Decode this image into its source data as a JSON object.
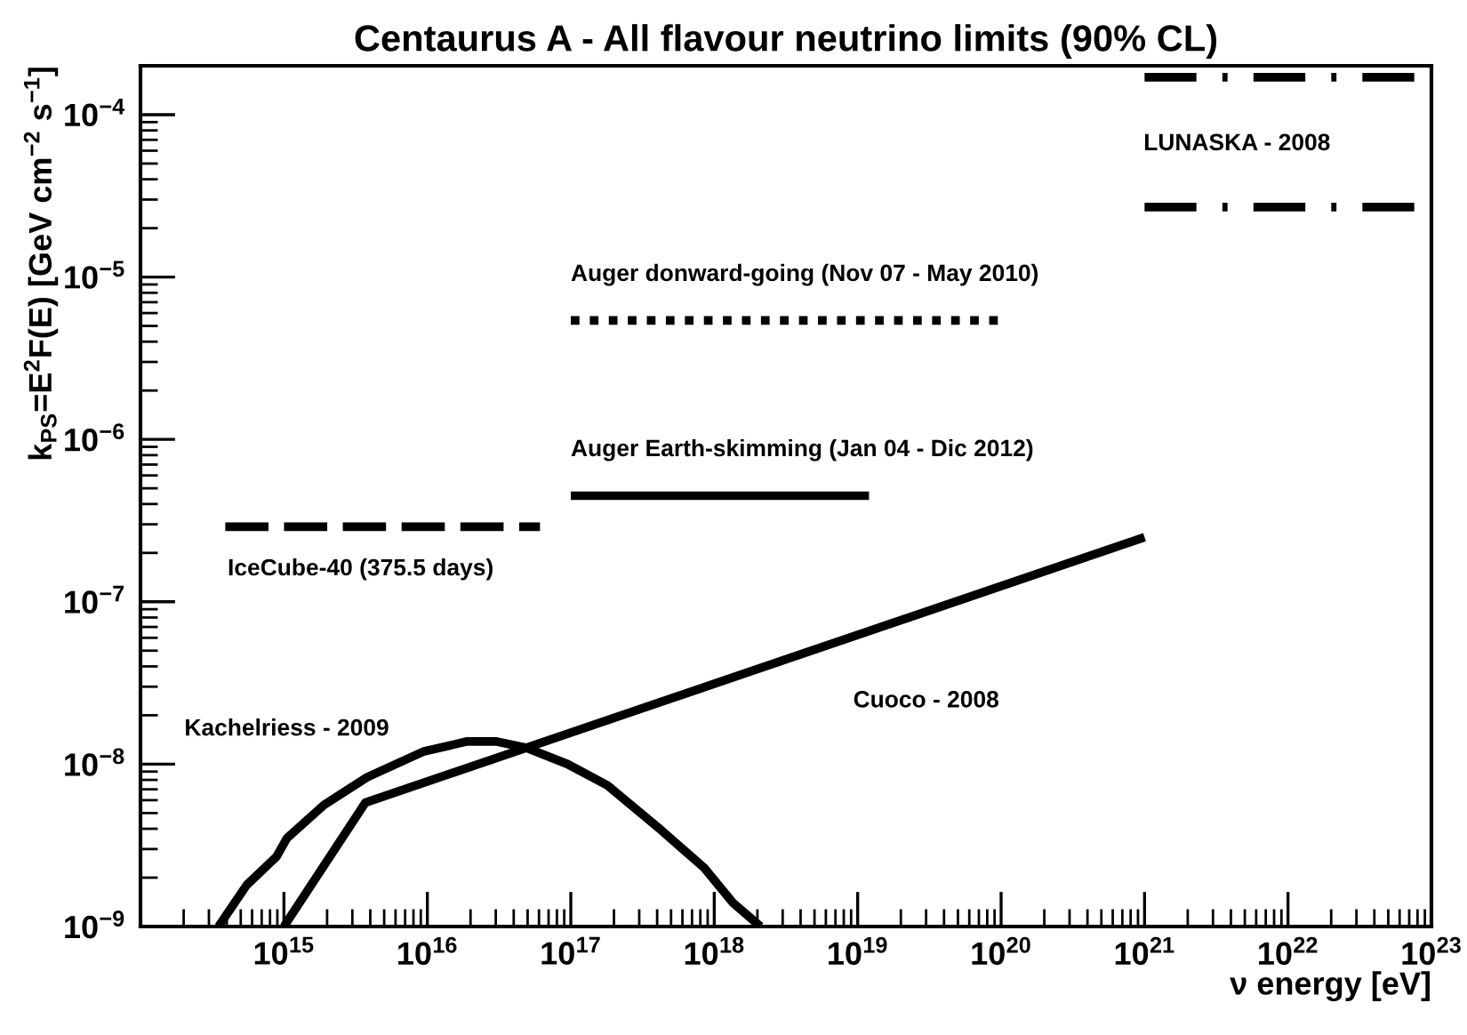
{
  "chart_data": {
    "type": "line",
    "title": "Centaurus A - All flavour neutrino limits (90% CL)",
    "xlabel": "ν energy [eV]",
    "ylabel": "k$_{PS}$=E$^{2}$F(E) [GeV cm$^{−2}$ s$^{−1}$]",
    "log": "xy",
    "grid": false,
    "legend": false,
    "xlim": [
      100000000000000.0,
      1e+23
    ],
    "ylim": [
      1e-09,
      0.0002
    ],
    "xticks": [
      {
        "value": 1000000000000000.0,
        "label": "10$^{15}$"
      },
      {
        "value": 1e+16,
        "label": "10$^{16}$"
      },
      {
        "value": 1e+17,
        "label": "10$^{17}$"
      },
      {
        "value": 1e+18,
        "label": "10$^{18}$"
      },
      {
        "value": 1e+19,
        "label": "10$^{19}$"
      },
      {
        "value": 1e+20,
        "label": "10$^{20}$"
      },
      {
        "value": 1e+21,
        "label": "10$^{21}$"
      },
      {
        "value": 1e+22,
        "label": "10$^{22}$"
      },
      {
        "value": 1e+23,
        "label": "10$^{23}$"
      }
    ],
    "yticks": [
      {
        "value": 1e-09,
        "label": "10$^{−9}$"
      },
      {
        "value": 1e-08,
        "label": "10$^{−8}$"
      },
      {
        "value": 1e-07,
        "label": "10$^{−7}$"
      },
      {
        "value": 1e-06,
        "label": "10$^{−6}$"
      },
      {
        "value": 1e-05,
        "label": "10$^{−5}$"
      },
      {
        "value": 0.0001,
        "label": "10$^{−4}$"
      }
    ],
    "annotations": [
      "IceCube-40 (375.5 days)",
      "LUNASKA - 2008",
      "Kachelriess - 2009"
    ],
    "series": [
      {
        "color": "#000000",
        "line_style": "dashed",
        "x": [
          390000000000000.0,
          6.1e+16
        ],
        "values": [
          2.9e-07,
          2.9e-07
        ]
      },
      {
        "name": "Auger donward-going (Nov 07 - May 2010)",
        "color": "#000000",
        "line_style": "dotted",
        "x": [
          1e+17,
          1e+20
        ],
        "values": [
          5.4e-06,
          5.4e-06
        ]
      },
      {
        "name": "Auger Earth-skimming (Jan 04 - Dic 2012)",
        "color": "#000000",
        "line_style": "solid",
        "x": [
          1e+17,
          1.2e+19
        ],
        "values": [
          4.5e-07,
          4.5e-07
        ]
      },
      {
        "color": "#000000",
        "line_style": "dashdot",
        "x": [
          1e+21,
          1e+23
        ],
        "values": [
          2.7e-05,
          2.7e-05
        ]
      },
      {
        "color": "#000000",
        "line_style": "dashdot",
        "x": [
          1e+21,
          1e+23
        ],
        "values": [
          0.00017,
          0.00017
        ]
      },
      {
        "name": "Cuoco - 2008",
        "color": "#000000",
        "line_style": "solid",
        "x": [
          1000000000000000.0,
          3700000000000000.0,
          1e+21
        ],
        "values": [
          1e-09,
          5.8e-09,
          2.5e-07
        ]
      },
      {
        "color": "#000000",
        "line_style": "solid",
        "x": [
          350000000000000.0,
          550000000000000.0,
          890000000000000.0,
          1050000000000000.0,
          1900000000000000.0,
          3800000000000000.0,
          9500000000000000.0,
          1.9e+16,
          3e+16,
          4.9e+16,
          9.5e+16,
          1.8e+17,
          4.3e+17,
          8.5e+17,
          1.35e+18,
          2.1e+18
        ],
        "values": [
          1e-09,
          1.8e-09,
          2.7e-09,
          3.5e-09,
          5.6e-09,
          8.3e-09,
          1.2e-08,
          1.38e-08,
          1.38e-08,
          1.26e-08,
          1e-08,
          7.4e-09,
          3.9e-09,
          2.3e-09,
          1.4e-09,
          1e-09
        ]
      }
    ]
  }
}
